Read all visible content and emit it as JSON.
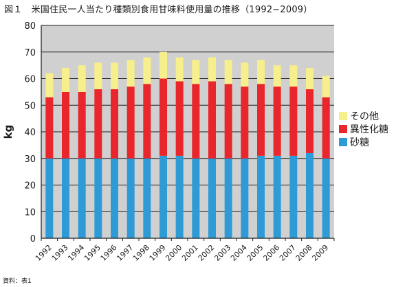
{
  "figure": {
    "title": "図１　米国住民一人当たり種類別食用甘味料使用量の推移（1992−2009）",
    "source": "資料：表1"
  },
  "chart_data": {
    "type": "bar",
    "stacked": true,
    "categories": [
      "1992",
      "1993",
      "1994",
      "1995",
      "1996",
      "1997",
      "1998",
      "1999",
      "2000",
      "2001",
      "2002",
      "2003",
      "2004",
      "2005",
      "2006",
      "2007",
      "2008",
      "2009"
    ],
    "series": [
      {
        "name": "砂糖",
        "color": "#2f9bd6",
        "values": [
          30,
          30,
          30,
          30,
          30,
          30,
          30,
          31,
          31,
          30,
          30,
          30,
          30,
          31,
          31,
          31,
          32,
          30
        ]
      },
      {
        "name": "異性化糖",
        "color": "#e8262c",
        "values": [
          23,
          25,
          25,
          26,
          26,
          27,
          28,
          29,
          28,
          28,
          29,
          28,
          27,
          27,
          26,
          26,
          24,
          23
        ]
      },
      {
        "name": "その他",
        "color": "#f7ee8c",
        "values": [
          9,
          9,
          10,
          10,
          10,
          10,
          10,
          10,
          9,
          9,
          9,
          9,
          9,
          9,
          8,
          8,
          8,
          8
        ]
      }
    ],
    "ylabel": "kg",
    "ylim": [
      0,
      80
    ],
    "yticks": [
      0,
      10,
      20,
      30,
      40,
      50,
      60,
      70,
      80
    ],
    "grid": true,
    "plot_background": "#d0d0d0",
    "legend_position": "right"
  }
}
